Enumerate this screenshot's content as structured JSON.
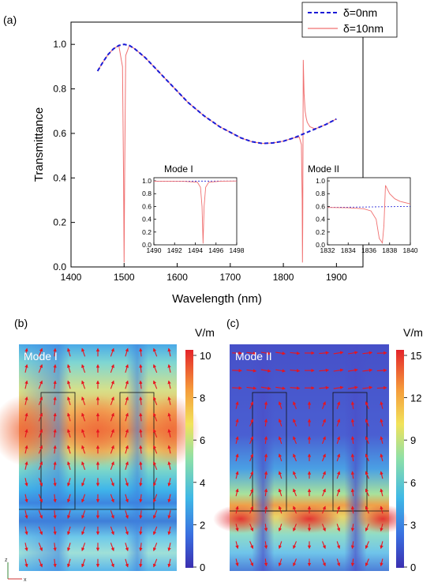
{
  "chart_data": [
    {
      "panel_label": "(a)",
      "type": "line",
      "xlabel": "Wavelength (nm)",
      "ylabel": "Transmittance",
      "xlim": [
        1400,
        1950
      ],
      "ylim": [
        0,
        1.1
      ],
      "xticks": [
        1400,
        1500,
        1600,
        1700,
        1800,
        1900
      ],
      "yticks": [
        0.0,
        0.2,
        0.4,
        0.6,
        0.8,
        1.0
      ],
      "legend_position": "top-right",
      "series": [
        {
          "name": "δ=0nm",
          "color": "#1a1ad6",
          "style": "dashed",
          "x": [
            1450,
            1460,
            1470,
            1480,
            1490,
            1500,
            1510,
            1520,
            1540,
            1560,
            1580,
            1600,
            1620,
            1650,
            1680,
            1700,
            1720,
            1740,
            1760,
            1780,
            1800,
            1820,
            1840,
            1860,
            1880,
            1900
          ],
          "y": [
            0.88,
            0.92,
            0.955,
            0.98,
            0.995,
            1.0,
            0.995,
            0.98,
            0.94,
            0.89,
            0.84,
            0.79,
            0.74,
            0.68,
            0.63,
            0.605,
            0.58,
            0.563,
            0.555,
            0.557,
            0.565,
            0.58,
            0.6,
            0.62,
            0.64,
            0.665
          ]
        },
        {
          "name": "δ=10nm",
          "color": "#f07070",
          "style": "solid",
          "x": [
            1450,
            1460,
            1470,
            1480,
            1490,
            1497,
            1499,
            1500,
            1501,
            1503,
            1510,
            1520,
            1540,
            1560,
            1580,
            1600,
            1620,
            1650,
            1680,
            1700,
            1720,
            1740,
            1760,
            1780,
            1800,
            1820,
            1830,
            1834,
            1835.5,
            1836,
            1836.5,
            1837.5,
            1839,
            1841,
            1843,
            1845,
            1850,
            1860,
            1880,
            1900
          ],
          "y": [
            0.88,
            0.92,
            0.955,
            0.98,
            0.995,
            0.9,
            0.4,
            0.02,
            0.4,
            0.95,
            0.995,
            0.98,
            0.94,
            0.89,
            0.84,
            0.79,
            0.74,
            0.68,
            0.63,
            0.605,
            0.58,
            0.563,
            0.555,
            0.557,
            0.565,
            0.58,
            0.583,
            0.55,
            0.3,
            0.02,
            0.2,
            0.93,
            0.78,
            0.7,
            0.67,
            0.65,
            0.63,
            0.62,
            0.64,
            0.665
          ]
        }
      ],
      "insets": [
        {
          "title": "Mode I",
          "xlim": [
            1490,
            1498
          ],
          "ylim": [
            0,
            1.05
          ],
          "xticks": [
            1490,
            1492,
            1494,
            1496,
            1498
          ],
          "yticks": [
            0.0,
            0.2,
            0.4,
            0.6,
            0.8,
            1.0
          ],
          "reference": {
            "x": [
              1490,
              1498
            ],
            "y": [
              0.995,
              0.998
            ]
          },
          "curve": {
            "x": [
              1490,
              1493,
              1494.2,
              1494.5,
              1494.65,
              1494.75,
              1494.85,
              1495.0,
              1495.3,
              1496.5,
              1498
            ],
            "y": [
              0.995,
              0.992,
              0.98,
              0.9,
              0.6,
              0.02,
              0.6,
              0.9,
              0.98,
              0.995,
              0.998
            ]
          }
        },
        {
          "title": "Mode II",
          "xlim": [
            1832,
            1840
          ],
          "ylim": [
            0,
            1.05
          ],
          "xticks": [
            1832,
            1834,
            1836,
            1838,
            1840
          ],
          "yticks": [
            0.0,
            0.2,
            0.4,
            0.6,
            0.8,
            1.0
          ],
          "reference": {
            "x": [
              1832,
              1840
            ],
            "y": [
              0.585,
              0.6
            ]
          },
          "curve": {
            "x": [
              1832,
              1834,
              1835.5,
              1836.2,
              1836.7,
              1837.0,
              1837.3,
              1837.45,
              1837.6,
              1838,
              1838.5,
              1839,
              1840
            ],
            "y": [
              0.585,
              0.58,
              0.565,
              0.53,
              0.4,
              0.1,
              0.03,
              0.3,
              0.93,
              0.8,
              0.72,
              0.68,
              0.64
            ]
          }
        }
      ]
    },
    {
      "panel_label": "(b)",
      "type": "heatmap",
      "title": "Mode I",
      "colorbar": {
        "unit": "V/m",
        "min": 0,
        "max": 10,
        "ticks": [
          0,
          2,
          4,
          6,
          8,
          10
        ]
      },
      "axis_labels": {
        "x": "x",
        "z": "z"
      }
    },
    {
      "panel_label": "(c)",
      "type": "heatmap",
      "title": "Mode II",
      "colorbar": {
        "unit": "V/m",
        "min": 0,
        "max": 15,
        "ticks": [
          0,
          3,
          6,
          9,
          12,
          15
        ]
      }
    }
  ]
}
